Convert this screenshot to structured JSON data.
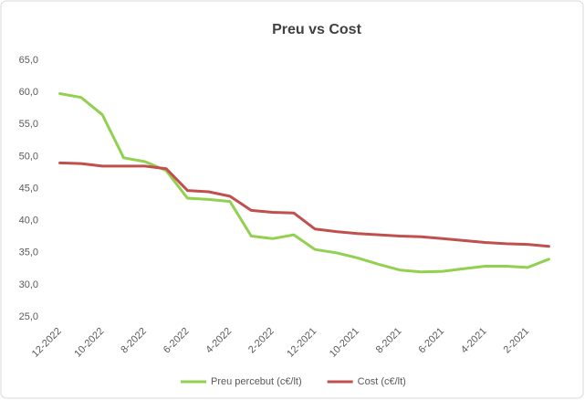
{
  "chart_data": {
    "type": "line",
    "title": "Preu vs Cost",
    "categories": [
      "12-2022",
      null,
      "10-2022",
      null,
      "8-2022",
      null,
      "6-2022",
      null,
      "4-2022",
      null,
      "2-2022",
      null,
      "12-2021",
      null,
      "10-2021",
      null,
      "8-2021",
      null,
      "6-2021",
      null,
      "4-2021",
      null,
      "2-2021",
      null
    ],
    "series": [
      {
        "name": "Preu percebut (c€/lt)",
        "color": "#92d050",
        "values": [
          59.8,
          59.2,
          56.5,
          49.8,
          49.2,
          47.8,
          43.5,
          43.3,
          43.0,
          37.6,
          37.2,
          37.8,
          35.5,
          35.0,
          34.2,
          33.2,
          32.3,
          32.0,
          32.1,
          32.5,
          32.9,
          32.9,
          32.7,
          34.0
        ]
      },
      {
        "name": "Cost (c€/lt)",
        "color": "#c0504d",
        "values": [
          49.0,
          48.9,
          48.5,
          48.5,
          48.5,
          48.1,
          44.7,
          44.5,
          43.8,
          41.6,
          41.3,
          41.2,
          38.7,
          38.3,
          38.0,
          37.8,
          37.6,
          37.5,
          37.2,
          36.9,
          36.6,
          36.4,
          36.3,
          36.0
        ]
      }
    ],
    "ylim": [
      25,
      65
    ],
    "yticks": [
      {
        "value": 25,
        "label": "25,0"
      },
      {
        "value": 30,
        "label": "30,0"
      },
      {
        "value": 35,
        "label": "35,0"
      },
      {
        "value": 40,
        "label": "40,0"
      },
      {
        "value": 45,
        "label": "45,0"
      },
      {
        "value": 50,
        "label": "50,0"
      },
      {
        "value": 55,
        "label": "55,0"
      },
      {
        "value": 60,
        "label": "60,0"
      },
      {
        "value": 65,
        "label": "65,0"
      }
    ],
    "grid": false,
    "legend": "bottom"
  }
}
